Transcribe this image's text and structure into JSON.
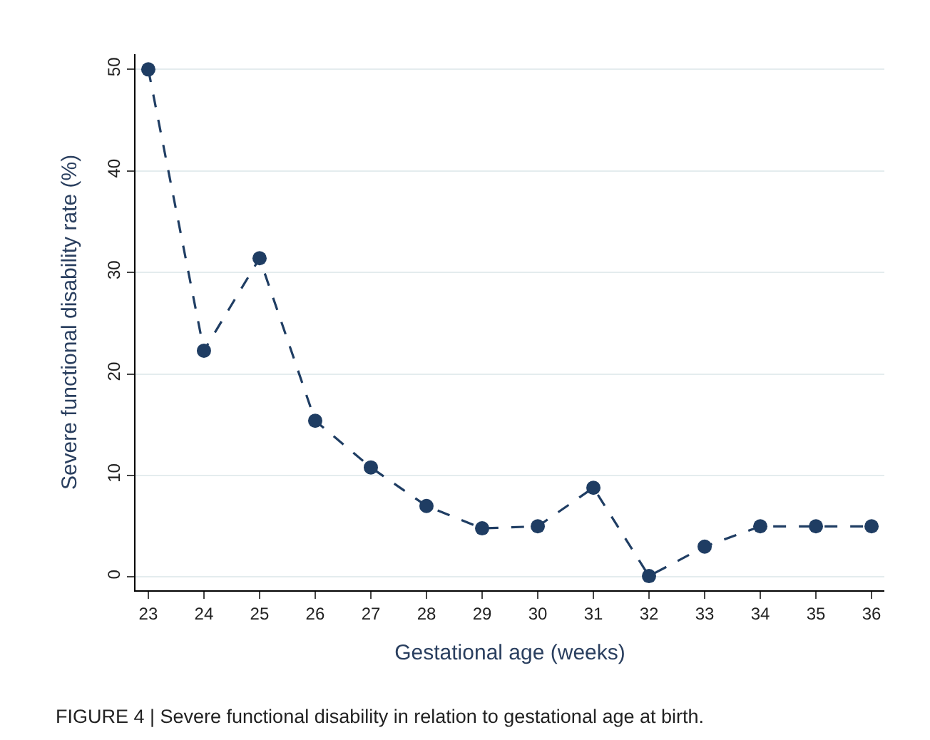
{
  "chart_data": {
    "type": "line",
    "xlabel": "Gestational age (weeks)",
    "ylabel": "Severe functional disability rate (%)",
    "x": [
      23,
      24,
      25,
      26,
      27,
      28,
      29,
      30,
      31,
      32,
      33,
      34,
      35,
      36
    ],
    "series": [
      {
        "color": "#1f3d63",
        "values": [
          50,
          22.3,
          31.4,
          15.4,
          10.8,
          7.0,
          4.8,
          5.0,
          8.8,
          0.1,
          3.0,
          5.0,
          5.0,
          5.0
        ]
      }
    ],
    "xlim": [
      22.77,
      36.23
    ],
    "xticks": [
      23,
      24,
      25,
      26,
      27,
      28,
      29,
      30,
      31,
      32,
      33,
      34,
      35,
      36
    ],
    "ylim": [
      -1.3,
      51.5
    ],
    "yticks": [
      0,
      10,
      20,
      30,
      40,
      50
    ],
    "grid": "y",
    "legend": false,
    "marker": "circle",
    "line_style": "dashed",
    "annotations": [
      "FIGURE 4 | Severe functional disability in relation to gestational age at birth."
    ]
  }
}
